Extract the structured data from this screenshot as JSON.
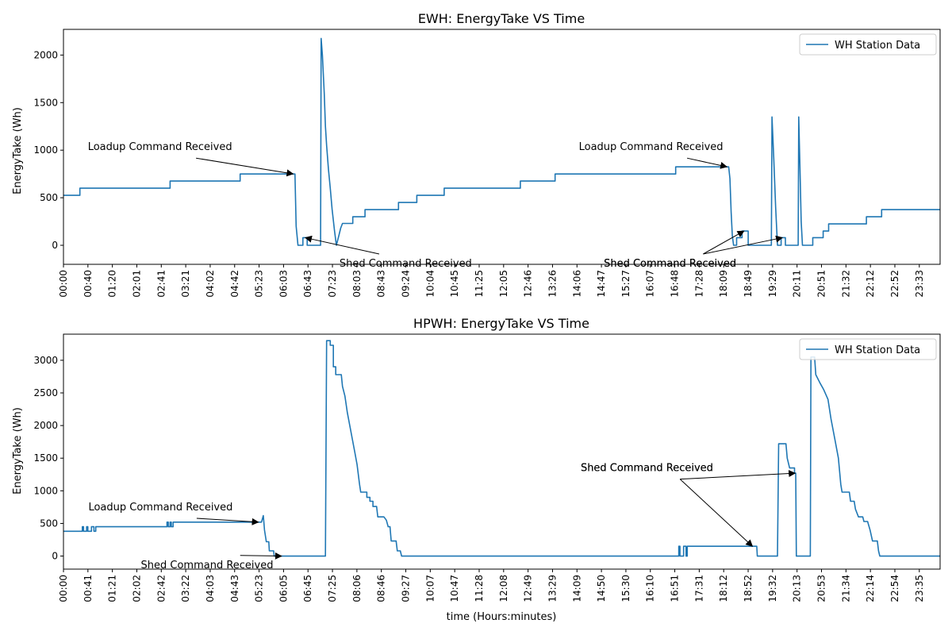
{
  "chart_data": [
    {
      "type": "line",
      "title": "EWH: EnergyTake VS Time",
      "xlabel": "",
      "ylabel": "EnergyTake (Wh)",
      "ylim": [
        -200,
        2270
      ],
      "y_ticks": [
        0,
        500,
        1000,
        1500,
        2000
      ],
      "x_tick_labels": [
        "00:00",
        "00:40",
        "01:20",
        "02:01",
        "02:41",
        "03:21",
        "04:02",
        "04:42",
        "05:23",
        "06:03",
        "06:43",
        "07:23",
        "08:03",
        "08:43",
        "09:24",
        "10:04",
        "10:45",
        "11:25",
        "12:05",
        "12:46",
        "13:26",
        "14:06",
        "14:47",
        "15:27",
        "16:07",
        "16:48",
        "17:28",
        "18:09",
        "18:49",
        "19:29",
        "20:11",
        "20:51",
        "21:32",
        "22:12",
        "22:52",
        "23:33"
      ],
      "legend": {
        "label": "WH Station Data",
        "placement": "top-right"
      },
      "color": "#1f77b4",
      "series": [
        {
          "name": "WH Station Data",
          "points": [
            [
              "00:00",
              525
            ],
            [
              "00:27",
              525
            ],
            [
              "00:27",
              600
            ],
            [
              "02:55",
              600
            ],
            [
              "02:55",
              675
            ],
            [
              "04:50",
              675
            ],
            [
              "04:50",
              750
            ],
            [
              "06:20",
              750
            ],
            [
              "06:22",
              200
            ],
            [
              "06:25",
              0
            ],
            [
              "06:33",
              0
            ],
            [
              "06:33",
              80
            ],
            [
              "06:40",
              80
            ],
            [
              "06:40",
              0
            ],
            [
              "07:02",
              0
            ],
            [
              "07:03",
              2175
            ],
            [
              "07:05",
              2000
            ],
            [
              "07:08",
              1600
            ],
            [
              "07:10",
              1250
            ],
            [
              "07:12",
              1050
            ],
            [
              "07:15",
              800
            ],
            [
              "07:18",
              600
            ],
            [
              "07:21",
              380
            ],
            [
              "07:25",
              150
            ],
            [
              "07:28",
              0
            ],
            [
              "07:32",
              100
            ],
            [
              "07:35",
              180
            ],
            [
              "07:38",
              230
            ],
            [
              "07:55",
              230
            ],
            [
              "07:55",
              300
            ],
            [
              "08:15",
              300
            ],
            [
              "08:15",
              375
            ],
            [
              "09:10",
              375
            ],
            [
              "09:10",
              450
            ],
            [
              "09:40",
              450
            ],
            [
              "09:40",
              525
            ],
            [
              "10:25",
              525
            ],
            [
              "10:25",
              600
            ],
            [
              "12:30",
              600
            ],
            [
              "12:30",
              675
            ],
            [
              "13:27",
              675
            ],
            [
              "13:27",
              750
            ],
            [
              "16:45",
              750
            ],
            [
              "16:45",
              825
            ],
            [
              "18:12",
              825
            ],
            [
              "18:14",
              700
            ],
            [
              "18:16",
              350
            ],
            [
              "18:18",
              100
            ],
            [
              "18:20",
              0
            ],
            [
              "18:25",
              0
            ],
            [
              "18:25",
              80
            ],
            [
              "18:34",
              80
            ],
            [
              "18:34",
              150
            ],
            [
              "18:44",
              150
            ],
            [
              "18:44",
              0
            ],
            [
              "19:22",
              0
            ],
            [
              "19:23",
              1350
            ],
            [
              "19:26",
              900
            ],
            [
              "19:29",
              400
            ],
            [
              "19:32",
              0
            ],
            [
              "19:38",
              0
            ],
            [
              "19:38",
              80
            ],
            [
              "19:45",
              80
            ],
            [
              "19:45",
              0
            ],
            [
              "20:06",
              0
            ],
            [
              "20:07",
              1350
            ],
            [
              "20:09",
              800
            ],
            [
              "20:11",
              250
            ],
            [
              "20:13",
              0
            ],
            [
              "20:30",
              0
            ],
            [
              "20:30",
              80
            ],
            [
              "20:47",
              80
            ],
            [
              "20:47",
              150
            ],
            [
              "20:56",
              150
            ],
            [
              "20:56",
              225
            ],
            [
              "21:58",
              225
            ],
            [
              "21:58",
              300
            ],
            [
              "22:23",
              300
            ],
            [
              "22:23",
              375
            ],
            [
              "23:59",
              375
            ]
          ]
        }
      ],
      "annotations": [
        {
          "text": "Loadup Command Received",
          "text_at": [
            "00:40",
            1000
          ],
          "arrow_to": [
            "06:17",
            750
          ]
        },
        {
          "text": "Shed Command Received",
          "text_at": [
            "07:33",
            -225
          ],
          "arrow_to": [
            "06:37",
            80
          ]
        },
        {
          "text": "Loadup Command Received",
          "text_at": [
            "14:06",
            1000
          ],
          "arrow_to": [
            "18:09",
            825
          ]
        },
        {
          "text": "Shed Command Received",
          "text_at": [
            "14:47",
            -225
          ],
          "arrow_to": [
            "18:37",
            150
          ]
        },
        {
          "text": "Shed Command Received",
          "text_at": [
            "14:47",
            -225
          ],
          "arrow_to": [
            "19:40",
            80
          ]
        }
      ]
    },
    {
      "type": "line",
      "title": "HPWH: EnergyTake VS Time",
      "xlabel": "time (Hours:minutes)",
      "ylabel": "EnergyTake (Wh)",
      "ylim": [
        -200,
        3400
      ],
      "y_ticks": [
        0,
        500,
        1000,
        1500,
        2000,
        2500,
        3000
      ],
      "x_tick_labels": [
        "00:00",
        "00:41",
        "01:21",
        "02:02",
        "02:42",
        "03:22",
        "04:03",
        "04:43",
        "05:23",
        "06:05",
        "06:45",
        "07:25",
        "08:06",
        "08:46",
        "09:27",
        "10:07",
        "10:47",
        "11:28",
        "12:08",
        "12:49",
        "13:29",
        "14:09",
        "14:50",
        "15:30",
        "16:10",
        "16:51",
        "17:31",
        "18:12",
        "18:52",
        "19:32",
        "20:13",
        "20:53",
        "21:34",
        "22:14",
        "22:54",
        "23:35"
      ],
      "legend": {
        "label": "WH Station Data",
        "placement": "top-right"
      },
      "color": "#1f77b4",
      "series": [
        {
          "name": "WH Station Data",
          "points": [
            [
              "00:00",
              380
            ],
            [
              "00:31",
              380
            ],
            [
              "00:31",
              450
            ],
            [
              "00:33",
              450
            ],
            [
              "00:33",
              380
            ],
            [
              "00:38",
              380
            ],
            [
              "00:38",
              450
            ],
            [
              "00:40",
              450
            ],
            [
              "00:40",
              380
            ],
            [
              "00:46",
              380
            ],
            [
              "00:46",
              450
            ],
            [
              "00:50",
              450
            ],
            [
              "00:50",
              380
            ],
            [
              "00:53",
              380
            ],
            [
              "00:53",
              450
            ],
            [
              "02:50",
              450
            ],
            [
              "02:50",
              520
            ],
            [
              "02:52",
              520
            ],
            [
              "02:52",
              450
            ],
            [
              "02:55",
              450
            ],
            [
              "02:55",
              520
            ],
            [
              "02:57",
              520
            ],
            [
              "02:57",
              450
            ],
            [
              "03:00",
              450
            ],
            [
              "03:00",
              520
            ],
            [
              "05:25",
              520
            ],
            [
              "05:28",
              620
            ],
            [
              "05:29",
              520
            ],
            [
              "05:30",
              400
            ],
            [
              "05:33",
              220
            ],
            [
              "05:37",
              220
            ],
            [
              "05:38",
              80
            ],
            [
              "05:45",
              80
            ],
            [
              "05:46",
              0
            ],
            [
              "07:10",
              0
            ],
            [
              "07:12",
              3300
            ],
            [
              "07:18",
              3300
            ],
            [
              "07:18",
              3230
            ],
            [
              "07:23",
              3230
            ],
            [
              "07:23",
              2900
            ],
            [
              "07:27",
              2900
            ],
            [
              "07:27",
              2780
            ],
            [
              "07:36",
              2780
            ],
            [
              "07:38",
              2600
            ],
            [
              "07:42",
              2450
            ],
            [
              "07:46",
              2200
            ],
            [
              "07:50",
              2000
            ],
            [
              "07:54",
              1800
            ],
            [
              "07:58",
              1600
            ],
            [
              "08:02",
              1400
            ],
            [
              "08:06",
              1100
            ],
            [
              "08:08",
              980
            ],
            [
              "08:18",
              980
            ],
            [
              "08:18",
              900
            ],
            [
              "08:23",
              900
            ],
            [
              "08:23",
              840
            ],
            [
              "08:28",
              840
            ],
            [
              "08:28",
              760
            ],
            [
              "08:34",
              760
            ],
            [
              "08:36",
              600
            ],
            [
              "08:46",
              600
            ],
            [
              "08:50",
              550
            ],
            [
              "08:53",
              450
            ],
            [
              "08:56",
              450
            ],
            [
              "08:58",
              230
            ],
            [
              "09:06",
              230
            ],
            [
              "09:08",
              80
            ],
            [
              "09:13",
              80
            ],
            [
              "09:15",
              0
            ],
            [
              "16:50",
              0
            ],
            [
              "16:50",
              150
            ],
            [
              "16:52",
              150
            ],
            [
              "16:52",
              0
            ],
            [
              "16:58",
              0
            ],
            [
              "16:58",
              150
            ],
            [
              "17:02",
              150
            ],
            [
              "17:02",
              0
            ],
            [
              "17:04",
              0
            ],
            [
              "17:04",
              150
            ],
            [
              "18:58",
              150
            ],
            [
              "18:59",
              0
            ],
            [
              "19:32",
              0
            ],
            [
              "19:34",
              1720
            ],
            [
              "19:46",
              1720
            ],
            [
              "19:48",
              1500
            ],
            [
              "19:52",
              1350
            ],
            [
              "20:00",
              1350
            ],
            [
              "20:00",
              1270
            ],
            [
              "20:02",
              1270
            ],
            [
              "20:03",
              0
            ],
            [
              "20:26",
              0
            ],
            [
              "20:27",
              3050
            ],
            [
              "20:33",
              3050
            ],
            [
              "20:35",
              2780
            ],
            [
              "20:42",
              2650
            ],
            [
              "20:48",
              2550
            ],
            [
              "20:55",
              2400
            ],
            [
              "21:00",
              2100
            ],
            [
              "21:06",
              1800
            ],
            [
              "21:12",
              1500
            ],
            [
              "21:16",
              1100
            ],
            [
              "21:18",
              980
            ],
            [
              "21:30",
              980
            ],
            [
              "21:32",
              840
            ],
            [
              "21:38",
              840
            ],
            [
              "21:40",
              720
            ],
            [
              "21:45",
              600
            ],
            [
              "21:52",
              600
            ],
            [
              "21:54",
              530
            ],
            [
              "22:00",
              530
            ],
            [
              "22:04",
              400
            ],
            [
              "22:08",
              230
            ],
            [
              "22:16",
              230
            ],
            [
              "22:18",
              80
            ],
            [
              "22:20",
              0
            ],
            [
              "23:59",
              0
            ]
          ]
        }
      ],
      "annotations": [
        {
          "text": "Loadup Command Received",
          "text_at": [
            "00:41",
            700
          ],
          "arrow_to": [
            "05:20",
            520
          ]
        },
        {
          "text": "Shed Command Received",
          "text_at": [
            "02:07",
            -185
          ],
          "arrow_to": [
            "05:58",
            0
          ]
        },
        {
          "text": "Shed Command Received",
          "text_at": [
            "14:09",
            1300
          ],
          "arrow_to": [
            "18:51",
            150
          ]
        },
        {
          "text": "Shed Command Received",
          "text_at": [
            "14:09",
            1300
          ],
          "arrow_to": [
            "20:01",
            1270
          ]
        }
      ]
    }
  ]
}
